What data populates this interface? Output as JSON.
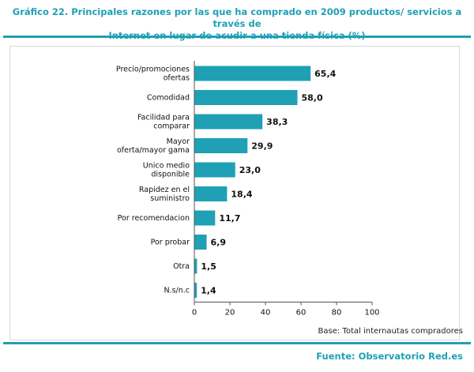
{
  "header": {
    "title_line1": "Gráfico 22. Principales razones por las que ha comprado en 2009 productos/ servicios a través de",
    "title_line2": "Internet en lugar de acudir a una tienda física (%)"
  },
  "footer": {
    "base_note": "Base: Total internautas compradores",
    "source": "Fuente: Observatorio Red.es"
  },
  "colors": {
    "bar": "#1fa0b5",
    "accent": "#1fa0b5"
  },
  "chart_data": {
    "type": "bar",
    "orientation": "horizontal",
    "categories": [
      [
        "Precio/promociones",
        "ofertas"
      ],
      [
        "Comodidad"
      ],
      [
        "Facilidad para",
        "comparar"
      ],
      [
        "Mayor",
        "oferta/mayor gama"
      ],
      [
        "Unico medio",
        "disponible"
      ],
      [
        "Rapidez en el",
        "suministro"
      ],
      [
        "Por recomendacion"
      ],
      [
        "Por probar"
      ],
      [
        "Otra"
      ],
      [
        "N.s/n.c"
      ]
    ],
    "values": [
      65.4,
      58.0,
      38.3,
      29.9,
      23.0,
      18.4,
      11.7,
      6.9,
      1.5,
      1.4
    ],
    "value_labels": [
      "65,4",
      "58,0",
      "38,3",
      "29,9",
      "23,0",
      "18,4",
      "11,7",
      "6,9",
      "1,5",
      "1,4"
    ],
    "xlim": [
      0,
      100
    ],
    "xticks": [
      0,
      20,
      40,
      60,
      80,
      100
    ],
    "grid": false
  }
}
